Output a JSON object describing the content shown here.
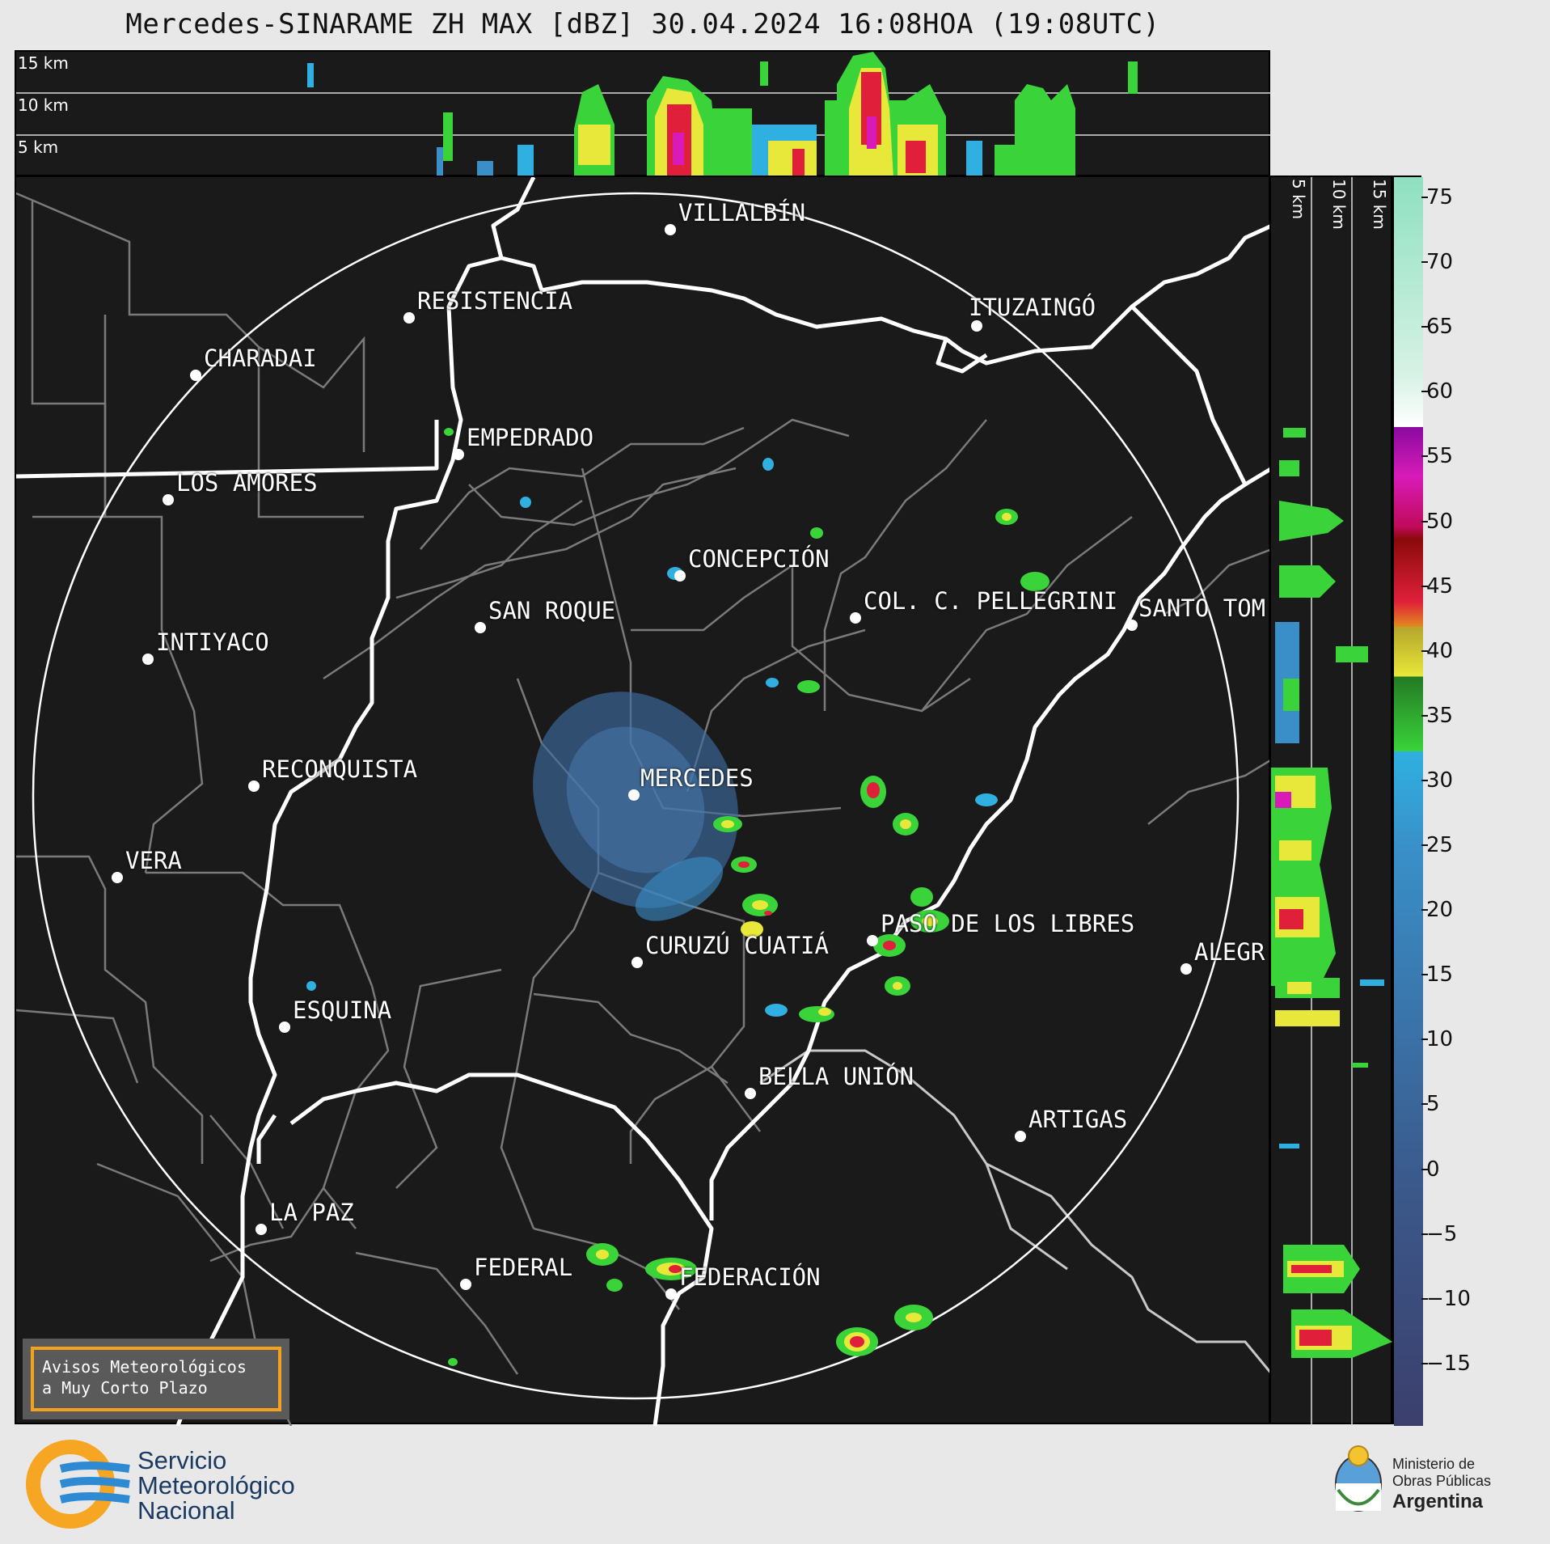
{
  "title": "Mercedes-SINARAME ZH MAX [dBZ] 30.04.2024 16:08HOA (19:08UTC)",
  "top_panel": {
    "height_labels": [
      "15 km",
      "10 km",
      "5 km"
    ]
  },
  "side_panel": {
    "height_labels": [
      "5 km",
      "10 km",
      "15 km"
    ]
  },
  "colorbar": {
    "ticks": [
      "75",
      "70",
      "65",
      "60",
      "55",
      "50",
      "45",
      "40",
      "35",
      "30",
      "25",
      "20",
      "15",
      "10",
      "5",
      "0",
      "−5",
      "−10",
      "−15"
    ],
    "colors": {
      "dark_blue": "#3b4a7c",
      "blue": "#3a8fc8",
      "cyan": "#2fb0e0",
      "green": "#3ad43a",
      "dark_green": "#237a23",
      "yellow": "#e8e83a",
      "olive": "#b5a52c",
      "orange": "#e08a1e",
      "red": "#e0203a",
      "dark_red": "#8a0a0a",
      "magenta": "#d81bb8",
      "purple": "#8a0aa0",
      "white": "#ffffff",
      "mint": "#8ee0c0"
    }
  },
  "cities": [
    {
      "name": "VILLALBÍN"
    },
    {
      "name": "RESISTENCIA"
    },
    {
      "name": "CHARADAI"
    },
    {
      "name": "ITUZAINGÓ"
    },
    {
      "name": "EMPEDRADO"
    },
    {
      "name": "LOS AMORES"
    },
    {
      "name": "CONCEPCIÓN"
    },
    {
      "name": "COL. C. PELLEGRINI"
    },
    {
      "name": "SANTO TOM"
    },
    {
      "name": "SAN ROQUE"
    },
    {
      "name": "INTIYACO"
    },
    {
      "name": "MERCEDES"
    },
    {
      "name": "RECONQUISTA"
    },
    {
      "name": "VERA"
    },
    {
      "name": "PASO DE LOS LIBRES"
    },
    {
      "name": "CURUZÚ CUATIÁ"
    },
    {
      "name": "ALEGR"
    },
    {
      "name": "ESQUINA"
    },
    {
      "name": "BELLA UNIÓN"
    },
    {
      "name": "ARTIGAS"
    },
    {
      "name": "LA PAZ"
    },
    {
      "name": "FEDERAL"
    },
    {
      "name": "FEDERACIÓN"
    }
  ],
  "alert_box": {
    "line1": "Avisos Meteorológicos",
    "line2": "a Muy Corto Plazo"
  },
  "footer": {
    "smn_line1": "Servicio",
    "smn_line2": "Meteorológico",
    "smn_line3": "Nacional",
    "ministry_line1": "Ministerio de",
    "ministry_line2": "Obras Públicas",
    "ministry_line3": "Argentina"
  }
}
